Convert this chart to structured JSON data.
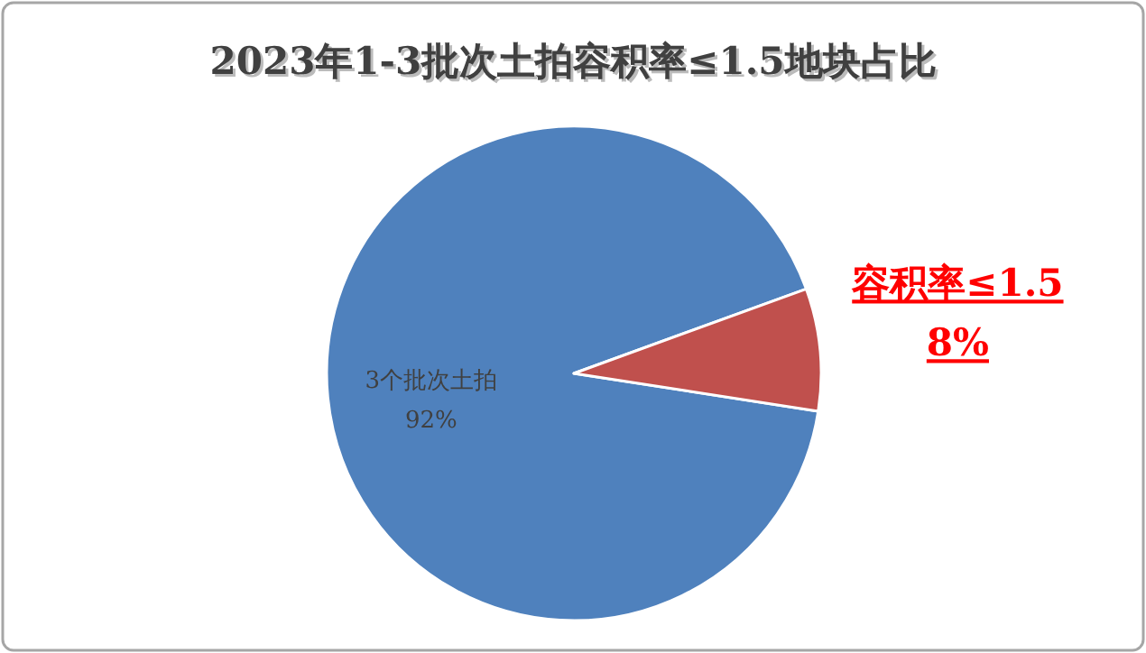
{
  "chart_data": {
    "type": "pie",
    "title": "2023年1-3批次土拍容积率≤1.5地块占比",
    "categories": [
      "3个批次土拍",
      "容积率≤1.5"
    ],
    "values": [
      92,
      8
    ],
    "value_labels": [
      "92%",
      "8%"
    ],
    "colors": [
      "#4f81bd",
      "#c0504d"
    ],
    "legend": false
  }
}
